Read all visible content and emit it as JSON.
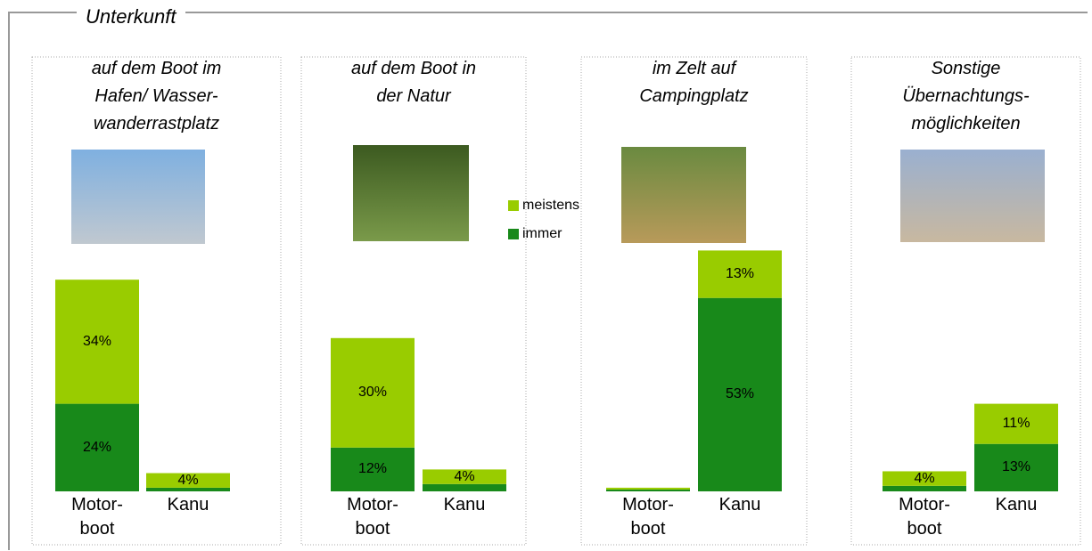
{
  "title": "Unterkunft",
  "chart_data": [
    {
      "type": "bar",
      "stacked": true,
      "title": "auf dem Boot im\nHafen/ Wasser-\nwanderrastplatz",
      "categories": [
        "Motor-\nboot",
        "Kanu"
      ],
      "series": [
        {
          "name": "immer",
          "color": "#18891a",
          "values": [
            24,
            1
          ],
          "value_labels": [
            "24%",
            null
          ]
        },
        {
          "name": "meistens",
          "color": "#99cc00",
          "values": [
            34,
            4
          ],
          "value_labels": [
            "34%",
            "4%"
          ]
        }
      ]
    },
    {
      "type": "bar",
      "stacked": true,
      "title": "auf dem Boot in\nder Natur",
      "categories": [
        "Motor-\nboot",
        "Kanu"
      ],
      "series": [
        {
          "name": "immer",
          "color": "#18891a",
          "values": [
            12,
            2
          ],
          "value_labels": [
            "12%",
            null
          ]
        },
        {
          "name": "meistens",
          "color": "#99cc00",
          "values": [
            30,
            4
          ],
          "value_labels": [
            "30%",
            "4%"
          ]
        }
      ]
    },
    {
      "type": "bar",
      "stacked": true,
      "title": "im Zelt auf\nCampingplatz",
      "categories": [
        "Motor-\nboot",
        "Kanu"
      ],
      "series": [
        {
          "name": "immer",
          "color": "#18891a",
          "values": [
            0.5,
            53
          ],
          "value_labels": [
            null,
            "53%"
          ]
        },
        {
          "name": "meistens",
          "color": "#99cc00",
          "values": [
            0.5,
            13
          ],
          "value_labels": [
            null,
            "13%"
          ]
        }
      ]
    },
    {
      "type": "bar",
      "stacked": true,
      "title": "Sonstige\nÜbernachtungs-\nmöglichkeiten",
      "categories": [
        "Motor-\nboot",
        "Kanu"
      ],
      "series": [
        {
          "name": "immer",
          "color": "#18891a",
          "values": [
            1.5,
            13
          ],
          "value_labels": [
            null,
            "13%"
          ]
        },
        {
          "name": "meistens",
          "color": "#99cc00",
          "values": [
            4,
            11
          ],
          "value_labels": [
            "4%",
            "11%"
          ]
        }
      ]
    }
  ]
}
